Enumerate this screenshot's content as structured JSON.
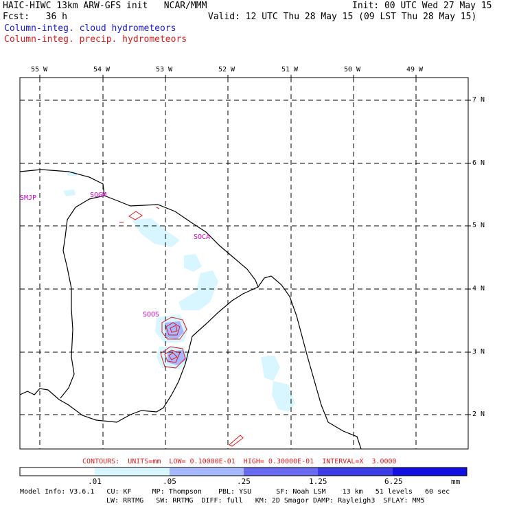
{
  "header": {
    "line1_left": "HAIC-HIWC 13km ARW-GFS init   NCAR/MMM",
    "line1_right": "Init: 00 UTC Wed 27 May 15",
    "line2_left": "Fcst:   36 h",
    "line2_right": "Valid: 12 UTC Thu 28 May 15 (09 LST Thu 28 May 15)",
    "field1": "Column-integ. cloud hydrometeors",
    "field2": "Column-integ. precip. hydrometeors"
  },
  "map": {
    "lon_labels": [
      "55 W",
      "54 W",
      "53 W",
      "52 W",
      "51 W",
      "50 W",
      "49 W"
    ],
    "lat_labels": [
      "7 N",
      "6 N",
      "5 N",
      "4 N",
      "3 N",
      "2 N"
    ],
    "stations": [
      "SMJP",
      "SOGM",
      "SOCA",
      "SOOS"
    ]
  },
  "contour_info": "CONTOURS:  UNITS=mm  LOW= 0.10000E-01  HIGH= 0.30000E-01  INTERVAL=X  3.0000",
  "colorbar": {
    "labels": [
      ".01",
      ".05",
      ".25",
      "1.25",
      "6.25"
    ],
    "unit": "mm",
    "colors": [
      "#ffffff",
      "#d8f6ff",
      "#a6b8ff",
      "#6a6af0",
      "#3c3ce6",
      "#1010e0"
    ]
  },
  "model_info": {
    "line1": "Model Info: V3.6.1   CU: KF     MP: Thompson    PBL: YSU      SF: Noah LSM    13 km   51 levels   60 sec",
    "line2": "LW: RRTMG   SW: RRTMG  DIFF: full   KM: 2D Smagor DAMP: Rayleigh3  SFLAY: MM5"
  },
  "colors": {
    "cloud_fill": "#d8f6ff",
    "cloud_mid": "#a6b8ff",
    "precip_contour": "#e01a1a",
    "station_label": "#d000d0",
    "title_blue": "#1a1ae0"
  }
}
